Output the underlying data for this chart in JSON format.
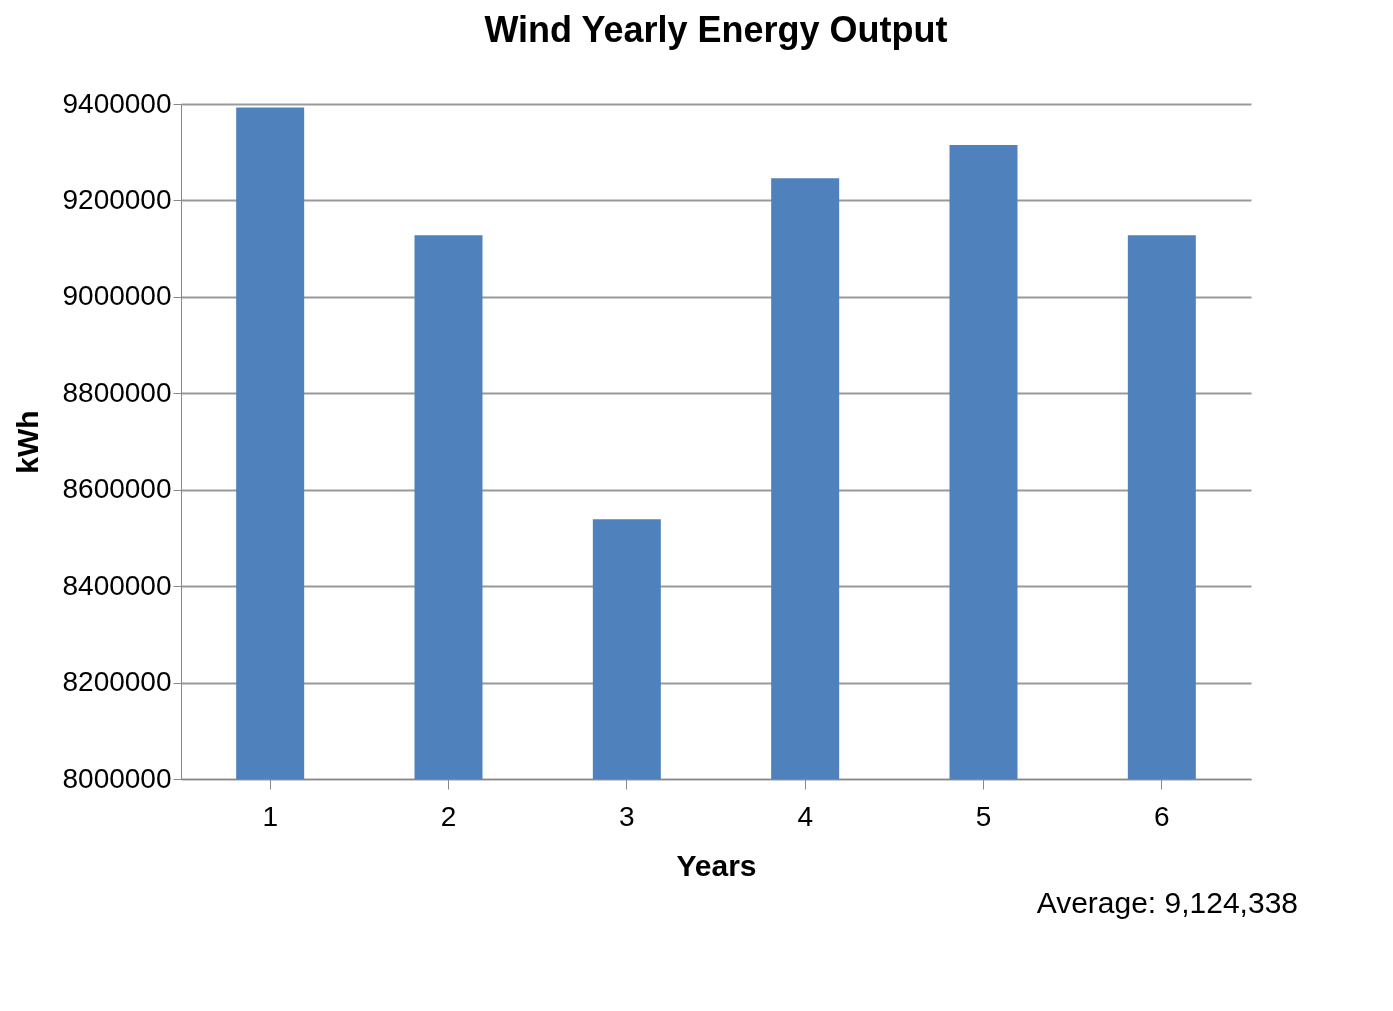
{
  "chart_data": {
    "type": "bar",
    "title": "Wind Yearly Energy Output",
    "xlabel": "Years",
    "ylabel": "kWh",
    "categories": [
      "1",
      "2",
      "3",
      "4",
      "5",
      "6"
    ],
    "values": [
      9393000,
      9128000,
      8539000,
      9246000,
      9315000,
      9128000
    ],
    "color": "#4f81bd",
    "ylim": [
      8000000,
      9400000
    ],
    "yticks": [
      8000000,
      8200000,
      8400000,
      8600000,
      8800000,
      9000000,
      9200000,
      9400000
    ],
    "grid": "y",
    "annotations": [
      "Average: 9,124,338"
    ]
  }
}
